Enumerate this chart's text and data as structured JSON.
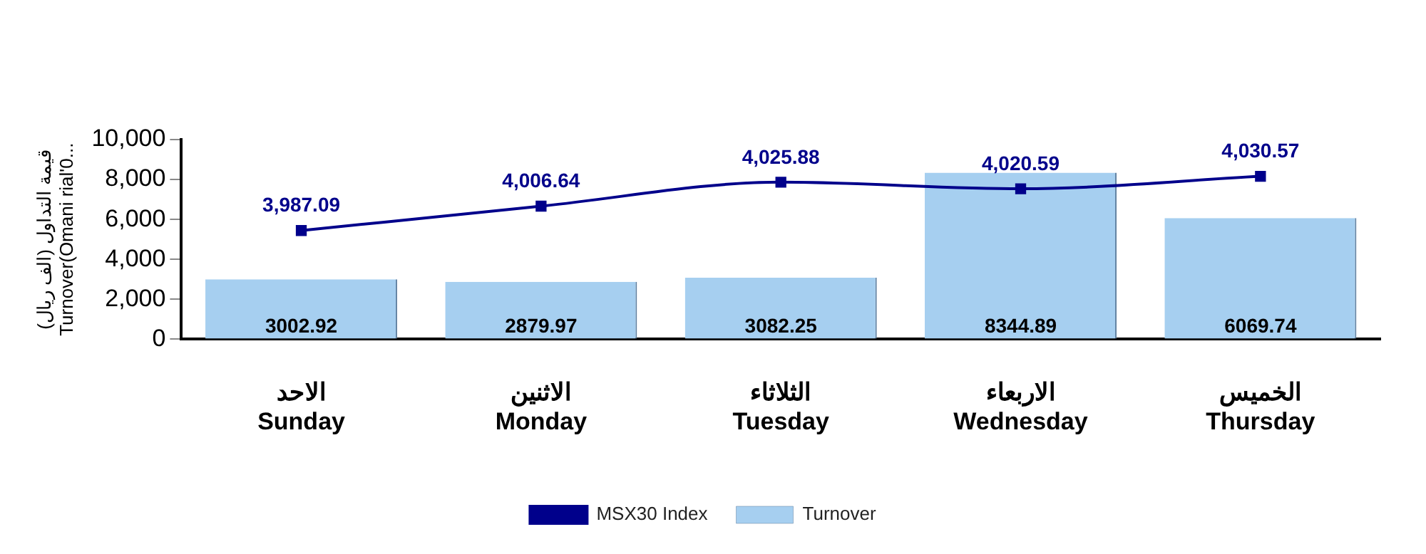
{
  "chart_data": {
    "type": "bar",
    "ylabel": "قيمة التداول (الف ريال)\nTurnover(Omani rial'0...",
    "categories": [
      "الاحد\nSunday",
      "الاثنين\nMonday",
      "الثلاثاء\nTuesday",
      "الاربعاء\nWednesday",
      "الخميس\nThursday"
    ],
    "series": [
      {
        "name": "MSX30 Index",
        "type": "line",
        "axis": "y2",
        "color": "#00008b",
        "values": [
          3987.09,
          4006.64,
          4025.88,
          4020.59,
          4030.57
        ],
        "value_labels": [
          "3,987.09",
          "4,006.64",
          "4,025.88",
          "4,020.59",
          "4,030.57"
        ]
      },
      {
        "name": "Turnover",
        "color": "#a6cff0",
        "values": [
          3002.92,
          2879.97,
          3082.25,
          8344.89,
          6069.74
        ],
        "value_labels": [
          "3002.92",
          "2879.97",
          "3082.25",
          "8344.89",
          "6069.74"
        ]
      }
    ],
    "ylim": [
      0,
      10000
    ],
    "yticks": [
      {
        "value": 0,
        "label": "0"
      },
      {
        "value": 2000,
        "label": "2,000"
      },
      {
        "value": 4000,
        "label": "4,000"
      },
      {
        "value": 6000,
        "label": "6,000"
      },
      {
        "value": 8000,
        "label": "8,000"
      },
      {
        "value": 10000,
        "label": "10,000"
      }
    ],
    "grid": false,
    "legend": "bottom",
    "marker": "square",
    "line_style": "solid"
  }
}
